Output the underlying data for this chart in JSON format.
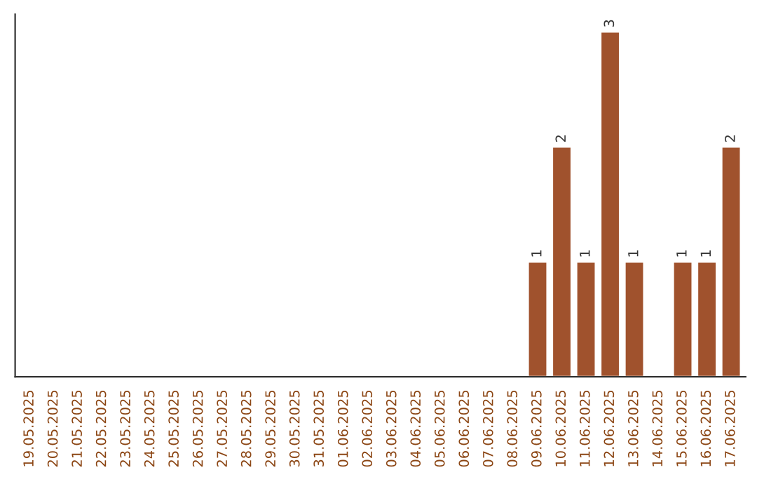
{
  "chart_data": {
    "type": "bar",
    "categories": [
      "19.05.2025",
      "20.05.2025",
      "21.05.2025",
      "22.05.2025",
      "23.05.2025",
      "24.05.2025",
      "25.05.2025",
      "26.05.2025",
      "27.05.2025",
      "28.05.2025",
      "29.05.2025",
      "30.05.2025",
      "31.05.2025",
      "01.06.2025",
      "02.06.2025",
      "03.06.2025",
      "04.06.2025",
      "05.06.2025",
      "06.06.2025",
      "07.06.2025",
      "08.06.2025",
      "09.06.2025",
      "10.06.2025",
      "11.06.2025",
      "12.06.2025",
      "13.06.2025",
      "14.06.2025",
      "15.06.2025",
      "16.06.2025",
      "17.06.2025"
    ],
    "values": [
      null,
      null,
      null,
      null,
      null,
      null,
      null,
      null,
      null,
      null,
      null,
      null,
      null,
      null,
      null,
      null,
      null,
      null,
      null,
      null,
      null,
      1,
      2,
      1,
      3,
      1,
      null,
      1,
      1,
      2
    ],
    "color": "#a0522d",
    "data_labels": true,
    "tick_labels": "x"
  }
}
